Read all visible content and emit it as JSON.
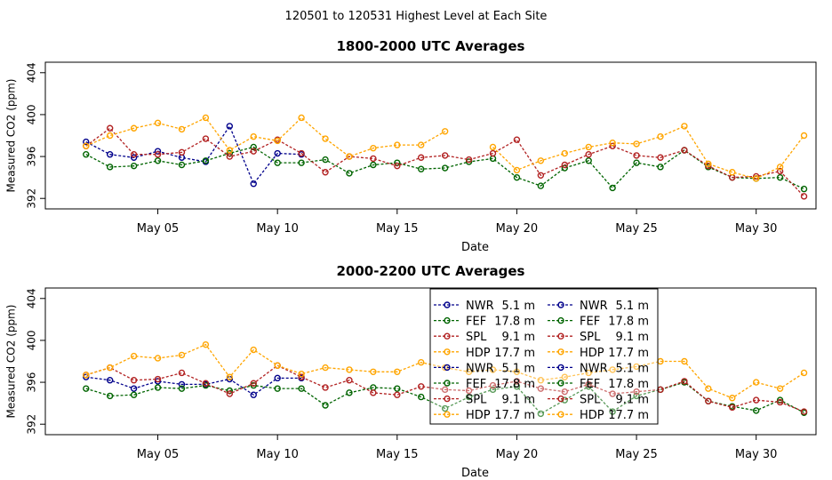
{
  "page_title": "120501  to  120531 Highest Level at Each Site",
  "colors": {
    "NWR": "#00008b",
    "FEF": "#006400",
    "SPL": "#b22222",
    "HDP": "#ffa500"
  },
  "chart_data": [
    {
      "type": "line",
      "title": "1800-2000 UTC Averages",
      "xlabel": "Date",
      "ylabel": "Measured CO2 (ppm)",
      "xlim": [
        0.3,
        32.5
      ],
      "ylim": [
        391,
        405
      ],
      "x_ticks": [
        5,
        10,
        15,
        20,
        25,
        30
      ],
      "x_tick_labels": [
        "May 05",
        "May 10",
        "May 15",
        "May 20",
        "May 25",
        "May 30"
      ],
      "y_ticks": [
        392,
        396,
        400,
        404
      ],
      "y_tick_labels": [
        "392",
        "396",
        "400",
        "404"
      ],
      "series": [
        {
          "name": "NWR",
          "height": "5.1 m",
          "color": "#00008b",
          "x": [
            2,
            3,
            4,
            5,
            6,
            7,
            8,
            9,
            10,
            11
          ],
          "y": [
            397.4,
            396.2,
            395.9,
            396.5,
            395.9,
            395.5,
            398.9,
            393.4,
            396.3,
            396.2
          ]
        },
        {
          "name": "FEF",
          "height": "17.8 m",
          "color": "#006400",
          "x": [
            2,
            3,
            4,
            5,
            6,
            7,
            8,
            9,
            10,
            11,
            12,
            13,
            14,
            15,
            16,
            17,
            18,
            19,
            20,
            21,
            22,
            23,
            24,
            25,
            26,
            27,
            28,
            29,
            30,
            31,
            32
          ],
          "y": [
            396.2,
            395.0,
            395.1,
            395.6,
            395.2,
            395.6,
            396.3,
            396.9,
            395.4,
            395.4,
            395.7,
            394.4,
            395.2,
            395.4,
            394.8,
            394.9,
            395.5,
            395.8,
            394.0,
            393.2,
            394.9,
            395.6,
            393.0,
            395.4,
            395.0,
            396.6,
            395.0,
            394.0,
            393.9,
            394.0,
            392.9
          ]
        },
        {
          "name": "SPL",
          "height": "9.1 m",
          "color": "#b22222",
          "x": [
            2,
            3,
            4,
            5,
            6,
            7,
            8,
            9,
            10,
            11,
            12,
            13,
            14,
            15,
            16,
            17,
            18,
            19,
            20,
            21,
            22,
            23,
            24,
            25,
            26,
            27,
            28,
            29,
            30,
            31,
            32
          ],
          "y": [
            397.0,
            398.7,
            396.2,
            396.2,
            396.4,
            397.7,
            396.0,
            396.5,
            397.6,
            396.3,
            394.5,
            396.0,
            395.8,
            395.1,
            395.9,
            396.1,
            395.7,
            396.3,
            397.6,
            394.2,
            395.2,
            396.2,
            397.0,
            396.1,
            395.9,
            396.6,
            395.1,
            394.0,
            394.1,
            394.6,
            392.2
          ]
        },
        {
          "name": "HDP",
          "height": "17.7 m",
          "color": "#ffa500",
          "x": [
            2,
            3,
            4,
            5,
            6,
            7,
            8,
            9,
            10,
            11,
            12,
            13,
            14,
            15,
            16,
            17,
            19,
            20,
            21,
            22,
            23,
            24,
            25,
            26,
            27,
            28,
            29,
            30,
            31,
            32
          ],
          "y": [
            397.0,
            398.0,
            398.7,
            399.2,
            398.6,
            399.7,
            396.6,
            397.9,
            397.5,
            399.7,
            397.7,
            396.0,
            396.8,
            397.1,
            397.1,
            398.4,
            396.9,
            394.7,
            395.6,
            396.3,
            396.9,
            397.3,
            397.2,
            397.9,
            398.9,
            395.3,
            394.5,
            393.9,
            395.0,
            398.0
          ]
        }
      ]
    },
    {
      "type": "line",
      "title": "2000-2200 UTC Averages",
      "xlabel": "Date",
      "ylabel": "Measured CO2 (ppm)",
      "xlim": [
        0.3,
        32.5
      ],
      "ylim": [
        391,
        405
      ],
      "x_ticks": [
        5,
        10,
        15,
        20,
        25,
        30
      ],
      "x_tick_labels": [
        "May 05",
        "May 10",
        "May 15",
        "May 20",
        "May 25",
        "May 30"
      ],
      "y_ticks": [
        392,
        396,
        400,
        404
      ],
      "y_tick_labels": [
        "392",
        "396",
        "400",
        "404"
      ],
      "series": [
        {
          "name": "NWR",
          "height": "5.1 m",
          "color": "#00008b",
          "x": [
            2,
            3,
            4,
            5,
            6,
            7,
            8,
            9,
            10,
            11
          ],
          "y": [
            396.5,
            396.2,
            395.4,
            396.1,
            395.8,
            395.8,
            396.3,
            394.8,
            396.4,
            396.4
          ]
        },
        {
          "name": "FEF",
          "height": "17.8 m",
          "color": "#006400",
          "x": [
            2,
            3,
            4,
            5,
            6,
            7,
            8,
            9,
            10,
            11,
            12,
            13,
            14,
            15,
            16,
            17,
            18,
            19,
            20,
            21,
            22,
            23,
            24,
            25,
            26,
            27,
            28,
            29,
            30,
            31,
            32
          ],
          "y": [
            395.4,
            394.7,
            394.8,
            395.5,
            395.4,
            395.7,
            395.2,
            395.7,
            395.4,
            395.4,
            393.8,
            395.0,
            395.5,
            395.4,
            394.6,
            393.5,
            394.6,
            395.3,
            395.6,
            393.0,
            394.3,
            395.6,
            393.2,
            394.7,
            395.3,
            396.0,
            394.2,
            393.7,
            393.3,
            394.3,
            393.1
          ]
        },
        {
          "name": "SPL",
          "height": "9.1 m",
          "color": "#b22222",
          "x": [
            2,
            3,
            4,
            5,
            6,
            7,
            8,
            9,
            10,
            11,
            12,
            13,
            14,
            15,
            16,
            17,
            18,
            19,
            20,
            21,
            22,
            23,
            24,
            25,
            26,
            27,
            28,
            29,
            30,
            31,
            32
          ],
          "y": [
            396.7,
            397.4,
            396.2,
            396.3,
            396.9,
            395.9,
            394.9,
            395.9,
            397.6,
            396.5,
            395.5,
            396.2,
            395.0,
            394.8,
            395.6,
            395.3,
            395.2,
            395.7,
            396.1,
            395.4,
            395.1,
            395.8,
            394.9,
            395.1,
            395.3,
            396.1,
            394.2,
            393.6,
            394.3,
            394.1,
            393.2
          ]
        },
        {
          "name": "HDP",
          "height": "17.7 m",
          "color": "#ffa500",
          "x": [
            2,
            3,
            4,
            5,
            6,
            7,
            8,
            9,
            10,
            11,
            12,
            13,
            14,
            15,
            16,
            17,
            18,
            19,
            20,
            21,
            22,
            23,
            24,
            25,
            26,
            27,
            28,
            29,
            30,
            31,
            32
          ],
          "y": [
            396.7,
            397.4,
            398.5,
            398.3,
            398.6,
            399.6,
            396.5,
            399.1,
            397.6,
            396.8,
            397.4,
            397.2,
            397.0,
            397.0,
            397.9,
            397.4,
            397.0,
            397.2,
            397.0,
            396.2,
            396.5,
            396.9,
            397.2,
            397.5,
            398.0,
            398.0,
            395.4,
            394.5,
            396.0,
            395.4,
            396.9
          ]
        }
      ]
    }
  ],
  "legend": {
    "columns": [
      [
        {
          "name": "NWR",
          "height": "5.1 m",
          "color": "#00008b"
        },
        {
          "name": "FEF",
          "height": "17.8 m",
          "color": "#006400"
        },
        {
          "name": "SPL",
          "height": "9.1 m",
          "color": "#b22222"
        },
        {
          "name": "HDP",
          "height": "17.7 m",
          "color": "#ffa500"
        },
        {
          "name": "NWR",
          "height": "5.1 m",
          "color": "#00008b"
        },
        {
          "name": "FEF",
          "height": "17.8 m",
          "color": "#006400"
        },
        {
          "name": "SPL",
          "height": "9.1 m",
          "color": "#b22222"
        },
        {
          "name": "HDP",
          "height": "17.7 m",
          "color": "#ffa500"
        }
      ],
      [
        {
          "name": "NWR",
          "height": "5.1 m",
          "color": "#00008b"
        },
        {
          "name": "FEF",
          "height": "17.8 m",
          "color": "#006400"
        },
        {
          "name": "SPL",
          "height": "9.1 m",
          "color": "#b22222"
        },
        {
          "name": "HDP",
          "height": "17.7 m",
          "color": "#ffa500"
        },
        {
          "name": "NWR",
          "height": "5.1 m",
          "color": "#00008b"
        },
        {
          "name": "FEF",
          "height": "17.8 m",
          "color": "#006400"
        },
        {
          "name": "SPL",
          "height": "9.1 m",
          "color": "#b22222"
        },
        {
          "name": "HDP",
          "height": "17.7 m",
          "color": "#ffa500"
        }
      ]
    ]
  }
}
